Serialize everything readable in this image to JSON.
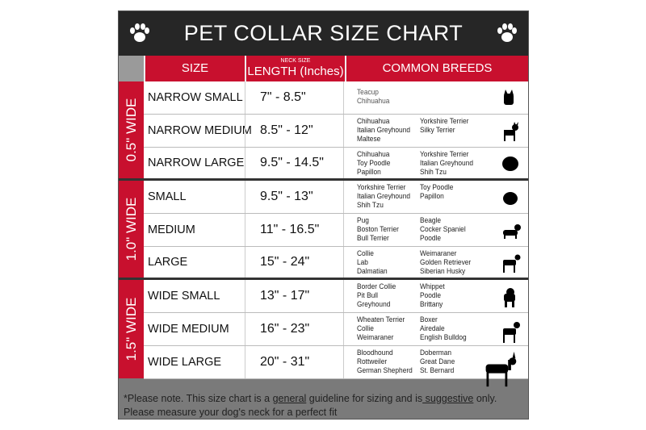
{
  "title": "PET COLLAR SIZE CHART",
  "header": {
    "size": "SIZE",
    "neck_size": "NECK SIZE",
    "length": "LENGTH (Inches)",
    "breeds": "COMMON BREEDS"
  },
  "groups": [
    "0.5\" WIDE",
    "1.0\" WIDE",
    "1.5\" WIDE"
  ],
  "rows": [
    {
      "size": "NARROW SMALL",
      "length": "7\" - 8.5\"",
      "breeds1": "Teacup\nChihuahua",
      "breeds2": ""
    },
    {
      "size": "NARROW MEDIUM",
      "length": "8.5\" - 12\"",
      "breeds1": "Chihuahua\nItalian Greyhound\nMaltese",
      "breeds2": "Yorkshire Terrier\nSilky Terrier"
    },
    {
      "size": "NARROW LARGE",
      "length": "9.5\" - 14.5\"",
      "breeds1": "Chihuahua\nToy Poodle\nPapillon",
      "breeds2": "Yorkshire Terrier\nItalian Greyhound\nShih Tzu"
    },
    {
      "size": "SMALL",
      "length": "9.5\" - 13\"",
      "breeds1": "Yorkshire Terrier\nItalian Greyhound\nShih Tzu",
      "breeds2": "Toy Poodle\nPapillon"
    },
    {
      "size": "MEDIUM",
      "length": "11\" - 16.5\"",
      "breeds1": "Pug\nBoston Terrier\nBull Terrier",
      "breeds2": "Beagle\nCocker Spaniel\nPoodle"
    },
    {
      "size": "LARGE",
      "length": "15\" - 24\"",
      "breeds1": "Collie\nLab\nDalmatian",
      "breeds2": "Weimaraner\nGolden Retriever\nSiberian Husky"
    },
    {
      "size": "WIDE SMALL",
      "length": "13\" - 17\"",
      "breeds1": "Border Collie\nPit Bull\nGreyhound",
      "breeds2": "Whippet\nPoodle\nBrittany"
    },
    {
      "size": "WIDE MEDIUM",
      "length": "16\" - 23\"",
      "breeds1": "Wheaten Terrier\nCollie\nWeimaraner",
      "breeds2": "Boxer\nAiredale\nEnglish Bulldog"
    },
    {
      "size": "WIDE LARGE",
      "length": "20\" - 31\"",
      "breeds1": "Bloodhound\nRottweiler\nGerman Shepherd",
      "breeds2": "Doberman\nGreat Dane\nSt. Bernard"
    }
  ],
  "footer": {
    "a": "*Please note. This size chart is a ",
    "b": "general",
    "c": " guideline for sizing and is",
    "d": " suggestive",
    "e": " only.",
    "line2": "Please measure your dog's neck for a perfect fit"
  },
  "colors": {
    "red": "#c8102e",
    "dark": "#262626",
    "gray": "#7a7a7a"
  }
}
